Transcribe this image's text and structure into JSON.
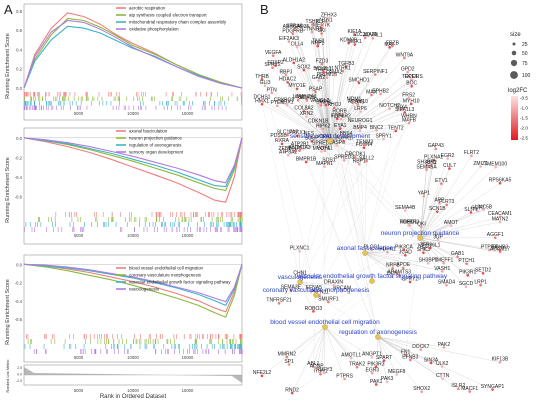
{
  "panels": {
    "a_label": "A",
    "b_label": "B"
  },
  "gsea": {
    "ylabel": "Running Enrichment Score",
    "bottom_ylabel": "Ranked List Metric",
    "xlabel": "Rank in Ordered Dataset",
    "x_ticks": [
      "5000",
      "10000",
      "15000"
    ],
    "x_max": 20000,
    "bottom_y_ticks": [
      "2.5",
      "0.0",
      "-2.5"
    ],
    "plots": [
      {
        "y_ticks": [
          "0.8",
          "0.6",
          "0.4",
          "0.2",
          "0.0"
        ],
        "ylim": [
          0,
          0.85
        ],
        "series": [
          {
            "name": "aerobic respiration",
            "color": "#f07d7d"
          },
          {
            "name": "atp synthesis coupled electron transport",
            "color": "#8cb83c"
          },
          {
            "name": "mitochondrial respiratory chain complex assembly",
            "color": "#3ab4c8"
          },
          {
            "name": "oxidative phosphorylation",
            "color": "#b07ce0"
          }
        ],
        "chart_data": {
          "type": "line",
          "x": [
            0,
            1000,
            2500,
            4000,
            5500,
            7000,
            8500,
            10000,
            12000,
            14000,
            16000,
            18000,
            20000
          ],
          "series": [
            {
              "name": "aerobic respiration",
              "values": [
                0,
                0.35,
                0.62,
                0.78,
                0.74,
                0.66,
                0.55,
                0.46,
                0.36,
                0.24,
                0.14,
                0.06,
                0.0
              ]
            },
            {
              "name": "atp synthesis coupled electron transport",
              "values": [
                0,
                0.3,
                0.55,
                0.72,
                0.7,
                0.63,
                0.54,
                0.44,
                0.35,
                0.24,
                0.14,
                0.06,
                0.0
              ]
            },
            {
              "name": "mitochondrial respiratory chain complex assembly",
              "values": [
                0,
                0.28,
                0.5,
                0.64,
                0.62,
                0.57,
                0.49,
                0.41,
                0.33,
                0.22,
                0.13,
                0.05,
                0.0
              ]
            },
            {
              "name": "oxidative phosphorylation",
              "values": [
                0,
                0.33,
                0.58,
                0.7,
                0.68,
                0.61,
                0.52,
                0.42,
                0.32,
                0.22,
                0.12,
                0.05,
                0.0
              ]
            }
          ]
        }
      },
      {
        "y_ticks": [
          "0.0",
          "-0.2",
          "-0.4",
          "-0.6"
        ],
        "ylim": [
          -0.72,
          0.08
        ],
        "series": [
          {
            "name": "axonal fasciculation",
            "color": "#f07d7d"
          },
          {
            "name": "neuron projection guidance",
            "color": "#8cb83c"
          },
          {
            "name": "regulation of axonogenesis",
            "color": "#3ab4c8"
          },
          {
            "name": "sensory organ development",
            "color": "#b07ce0"
          }
        ],
        "chart_data": {
          "type": "line",
          "x": [
            0,
            2000,
            4000,
            6000,
            8000,
            10000,
            12000,
            14000,
            16000,
            17500,
            18500,
            19300,
            20000
          ],
          "series": [
            {
              "name": "axonal fasciculation",
              "values": [
                0,
                -0.04,
                -0.09,
                -0.15,
                -0.22,
                -0.3,
                -0.38,
                -0.46,
                -0.56,
                -0.64,
                -0.66,
                -0.4,
                0.0
              ]
            },
            {
              "name": "neuron projection guidance",
              "values": [
                0,
                -0.03,
                -0.07,
                -0.12,
                -0.18,
                -0.24,
                -0.31,
                -0.38,
                -0.46,
                -0.52,
                -0.54,
                -0.33,
                0.0
              ]
            },
            {
              "name": "regulation of axonogenesis",
              "values": [
                0,
                -0.03,
                -0.06,
                -0.11,
                -0.16,
                -0.22,
                -0.28,
                -0.35,
                -0.43,
                -0.49,
                -0.5,
                -0.3,
                0.0
              ]
            },
            {
              "name": "sensory organ development",
              "values": [
                0,
                -0.02,
                -0.05,
                -0.09,
                -0.14,
                -0.19,
                -0.25,
                -0.31,
                -0.38,
                -0.44,
                -0.46,
                -0.28,
                0.0
              ]
            }
          ]
        }
      },
      {
        "y_ticks": [
          "0.0",
          "-0.2",
          "-0.4",
          "-0.6"
        ],
        "ylim": [
          -0.72,
          0.08
        ],
        "series": [
          {
            "name": "blood vessel endothelial cell migration",
            "color": "#f07d7d"
          },
          {
            "name": "coronary vasculature morphogenesis",
            "color": "#8cb83c"
          },
          {
            "name": "vascular endothelial growth factor signaling pathway",
            "color": "#3ab4c8"
          },
          {
            "name": "vasculogenesis",
            "color": "#b07ce0"
          }
        ],
        "chart_data": {
          "type": "line",
          "x": [
            0,
            2000,
            4000,
            6000,
            8000,
            10000,
            12000,
            14000,
            16000,
            17500,
            18500,
            19300,
            20000
          ],
          "series": [
            {
              "name": "blood vessel endothelial cell migration",
              "values": [
                0,
                -0.02,
                -0.05,
                -0.09,
                -0.14,
                -0.19,
                -0.25,
                -0.32,
                -0.4,
                -0.48,
                -0.52,
                -0.3,
                0.0
              ]
            },
            {
              "name": "coronary vasculature morphogenesis",
              "values": [
                0,
                -0.03,
                -0.07,
                -0.12,
                -0.17,
                -0.23,
                -0.3,
                -0.37,
                -0.45,
                -0.53,
                -0.58,
                -0.34,
                0.0
              ]
            },
            {
              "name": "vascular endothelial growth factor signaling pathway",
              "values": [
                0,
                -0.02,
                -0.04,
                -0.07,
                -0.11,
                -0.15,
                -0.2,
                -0.26,
                -0.33,
                -0.4,
                -0.45,
                -0.27,
                0.0
              ]
            },
            {
              "name": "vasculogenesis",
              "values": [
                0,
                -0.01,
                -0.03,
                -0.06,
                -0.1,
                -0.14,
                -0.19,
                -0.25,
                -0.31,
                -0.37,
                -0.41,
                -0.25,
                0.0
              ]
            }
          ]
        }
      }
    ]
  },
  "network": {
    "legend_size_title": "size",
    "legend_sizes": [
      "25",
      "50",
      "75",
      "100"
    ],
    "legend_color_title": "log2FC",
    "legend_color_ticks": [
      "-0.5",
      "-1.0",
      "-1.5",
      "-2.0",
      "-2.5"
    ],
    "terms": [
      "sensory organ development",
      "neuron projection guidance",
      "vasculogenesis",
      "axonal fasciculation",
      "coronary vasculature morphogenesis",
      "vascular endothelial growth factor signaling pathway",
      "blood vessel endothelial cell migration",
      "regulation of axonogenesis"
    ],
    "genes": [
      "ATP2B1",
      "SALL2",
      "MSX1",
      "PRDM16",
      "CDKN1B",
      "TGFB3",
      "KDM2B",
      "ZEB1",
      "PBX1",
      "MAX",
      "ALDH1A2",
      "BNC2",
      "DLL4",
      "SP3",
      "TENT2",
      "MAFB",
      "SOX9",
      "SKI",
      "FOXP2",
      "GPD2",
      "NES",
      "PSAP",
      "RXRA",
      "OPA1",
      "CASP6",
      "FZD3",
      "MAF",
      "ADAM10",
      "BBS4",
      "JAG2",
      "SOBP",
      "GDF11",
      "PDS5B",
      "WNT6",
      "EYA1",
      "ECE1",
      "CRYBG3",
      "SLC17A7",
      "THRB",
      "SIX4",
      "LRP6",
      "COL8A2",
      "NIPBL",
      "BCL2L11",
      "TOPORS",
      "KIF1A",
      "HMX1",
      "PTN",
      "ARHGAP35",
      "SLC25A25",
      "PRKX1",
      "HIPK2",
      "WHRN",
      "FRZB",
      "SIPA1L3",
      "DCHS1",
      "XRN2",
      "RORB",
      "MAN2A1",
      "SPRED3",
      "BMP4",
      "ALDH1A3",
      "MERTK",
      "RBP1",
      "VANGL2",
      "CRCDK1",
      "TRIP11",
      "NOTCH2",
      "FRS2",
      "SERPINF1",
      "HDAC2",
      "PTEN",
      "MAPK1",
      "RHOJ",
      "SMCHD1",
      "MDM1",
      "GLI3",
      "TSHR",
      "SOX2",
      "STRA6",
      "NEUROG1",
      "SOS1",
      "MYH10",
      "RBPJ",
      "ATP8A2",
      "WNT9A",
      "BMPR1B",
      "TGFBR2",
      "TNS1",
      "KLF4",
      "FOXN4",
      "CTNNB1",
      "SPRY1",
      "SPRY2",
      "FZD4",
      "ACVRL1",
      "NTN1",
      "PDGFRB",
      "FGFR1",
      "EPHB2",
      "SPRED1",
      "VEGFA",
      "NRP1",
      "SOX18",
      "MYO7A",
      "TENM3",
      "MYO1E",
      "EIF2AK3",
      "ZFHX3",
      "NTRK1",
      "BOC",
      "LAMA2",
      "GAB2",
      "ETV1",
      "SCN1B",
      "TMEFF1",
      "UNC5B",
      "NEO1",
      "PIK3R1",
      "SMAD4",
      "EGR2",
      "GAP43",
      "RPS6KA5",
      "FLRT2",
      "MATN2",
      "PTCH1",
      "SLIT1",
      "APP",
      "SEMA4B",
      "FLRT3",
      "PLXNA1",
      "PTPRA",
      "GDF7",
      "SH3BP1",
      "SHC3",
      "QKI",
      "ZMIZ1",
      "RIN2",
      "ZFP36L1",
      "YAP1",
      "SGCD",
      "AGGF1",
      "SETD2",
      "TGFBR3",
      "TMEM100",
      "CEACAM1",
      "CUL7",
      "ADAM17",
      "AMOT",
      "GAB1",
      "EPHB3",
      "SEMA5A",
      "ROBO1",
      "LRP1",
      "EFNA5",
      "CHN1",
      "PLXNC1",
      "SMURF1",
      "ROBO3",
      "NRCAM",
      "DRAXIN",
      "TNFRSF21",
      "SEMA3E",
      "PTPN11",
      "PLCG1",
      "APOE",
      "JCAD",
      "VASH1",
      "JUP",
      "ADAMTS3",
      "SPRY2",
      "PDPK1",
      "SH3BP1",
      "NRP2",
      "PIK3CA",
      "DCN",
      "ANGPT1",
      "MMRN2",
      "NFE2L2",
      "EGR3",
      "ABL1",
      "TRAK2",
      "PAK1",
      "PTPRS",
      "AMOTL1",
      "ITSN1",
      "RND2",
      "SP1",
      "RUFY3",
      "ADNP",
      "SIN3A",
      "PAK2",
      "PAK3",
      "MACF1",
      "SYNGAP1",
      "KIF13B",
      "ULK2",
      "ISLR2",
      "SPART",
      "SHOX2",
      "CTTN",
      "FN1",
      "PIK3R3",
      "DOCK7",
      "MEGF8",
      "EFNB3"
    ]
  }
}
